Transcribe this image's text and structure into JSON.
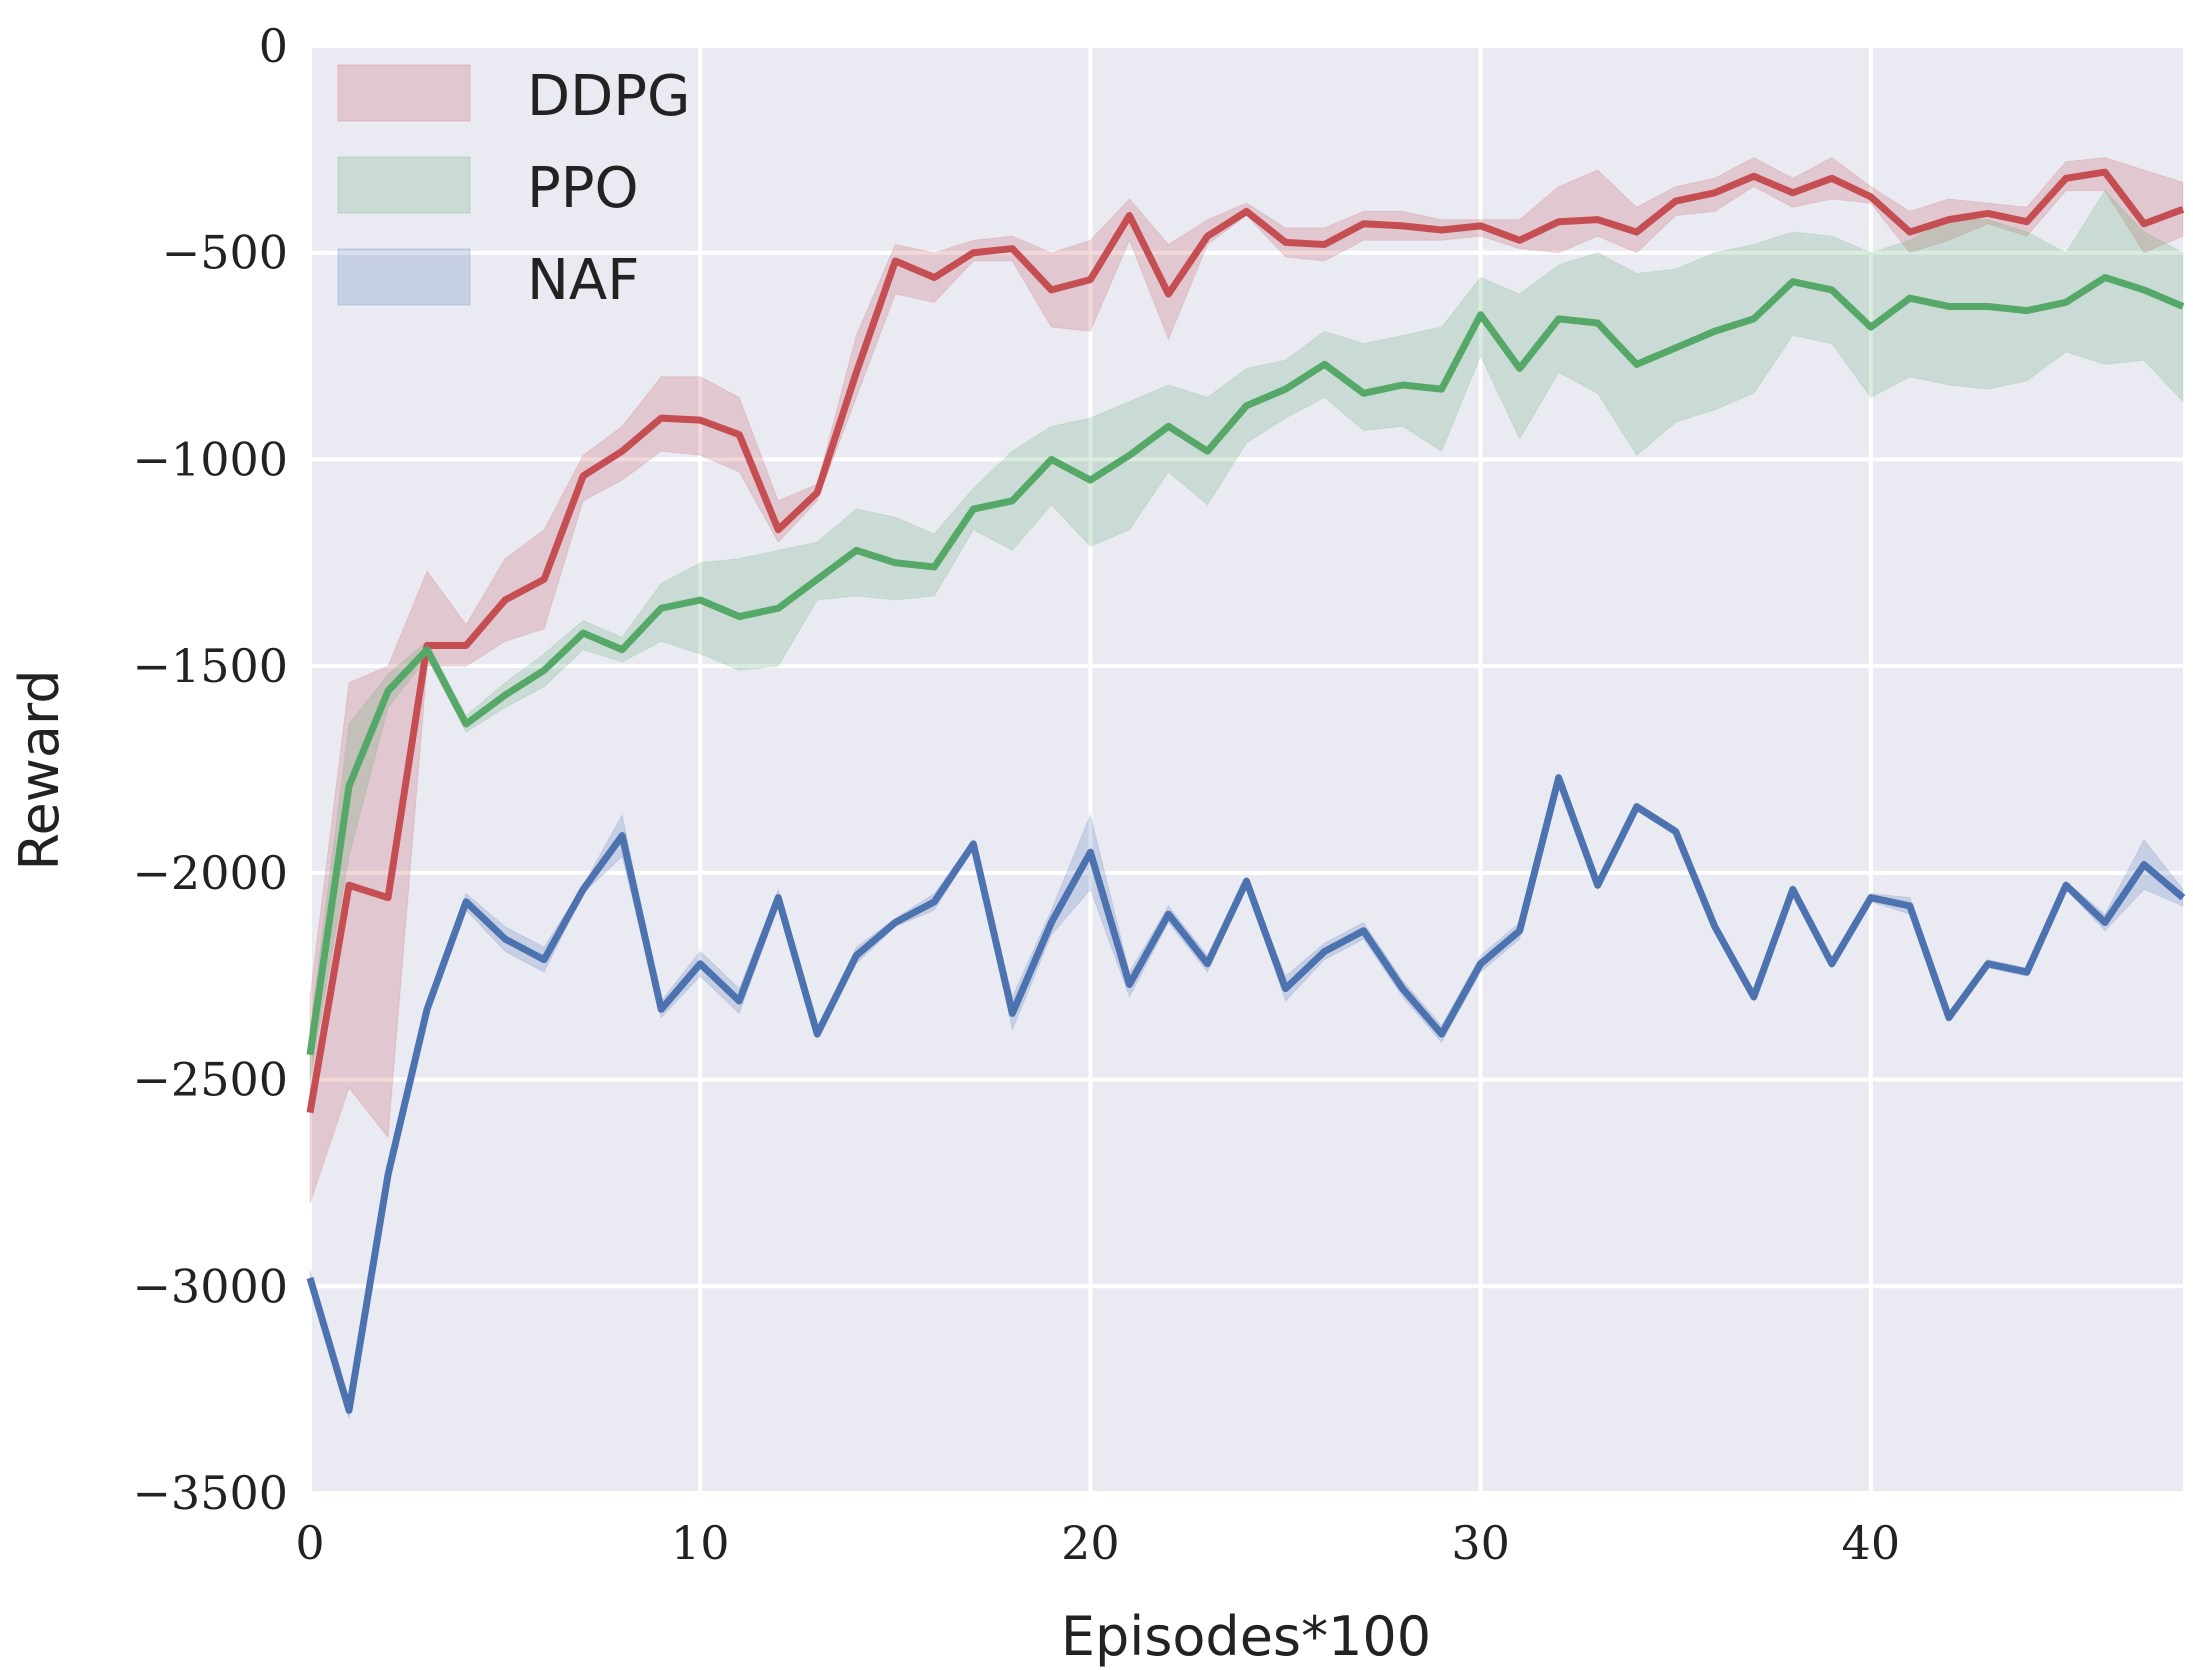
{
  "chart_data": {
    "type": "line",
    "title": "",
    "xlabel": "Episodes*100",
    "ylabel": "Reward",
    "xlim": [
      0,
      48
    ],
    "ylim": [
      -3500,
      0
    ],
    "xticks": [
      0,
      10,
      20,
      30,
      40
    ],
    "xtick_labels": [
      "0",
      "10",
      "20",
      "30",
      "40"
    ],
    "yticks": [
      0,
      -500,
      -1000,
      -1500,
      -2000,
      -2500,
      -3000,
      -3500
    ],
    "ytick_labels": [
      "0",
      "−500",
      "−1000",
      "−1500",
      "−2000",
      "−2500",
      "−3000",
      "−3500"
    ],
    "grid": true,
    "legend_position": "top-left",
    "x": [
      0,
      1,
      2,
      3,
      4,
      5,
      6,
      7,
      8,
      9,
      10,
      11,
      12,
      13,
      14,
      15,
      16,
      17,
      18,
      19,
      20,
      21,
      22,
      23,
      24,
      25,
      26,
      27,
      28,
      29,
      30,
      31,
      32,
      33,
      34,
      35,
      36,
      37,
      38,
      39,
      40,
      41,
      42,
      43,
      44,
      45,
      46,
      47,
      48
    ],
    "series": [
      {
        "name": "DDPG",
        "color": "#c44e52",
        "values": [
          -2580,
          -2030,
          -2060,
          -1450,
          -1450,
          -1340,
          -1290,
          -1040,
          -980,
          -900,
          -905,
          -940,
          -1170,
          -1080,
          -790,
          -520,
          -560,
          -500,
          -490,
          -590,
          -565,
          -410,
          -600,
          -460,
          -400,
          -475,
          -480,
          -430,
          -435,
          -445,
          -435,
          -470,
          -425,
          -420,
          -450,
          -375,
          -355,
          -315,
          -355,
          -320,
          -365,
          -450,
          -420,
          -405,
          -425,
          -320,
          -305,
          -430,
          -395
        ],
        "upper": [
          -2300,
          -1540,
          -1500,
          -1270,
          -1400,
          -1240,
          -1170,
          -990,
          -920,
          -800,
          -800,
          -850,
          -1100,
          -1060,
          -700,
          -480,
          -500,
          -470,
          -460,
          -500,
          -470,
          -370,
          -480,
          -420,
          -380,
          -440,
          -440,
          -400,
          -400,
          -420,
          -420,
          -420,
          -340,
          -300,
          -390,
          -340,
          -320,
          -270,
          -320,
          -270,
          -340,
          -400,
          -370,
          -380,
          -390,
          -280,
          -270,
          -300,
          -330
        ],
        "lower": [
          -2800,
          -2520,
          -2640,
          -1500,
          -1500,
          -1440,
          -1410,
          -1100,
          -1050,
          -980,
          -990,
          -1030,
          -1200,
          -1100,
          -850,
          -600,
          -620,
          -520,
          -520,
          -680,
          -690,
          -470,
          -710,
          -480,
          -410,
          -510,
          -520,
          -470,
          -470,
          -470,
          -460,
          -490,
          -500,
          -460,
          -500,
          -410,
          -400,
          -340,
          -390,
          -370,
          -380,
          -500,
          -470,
          -430,
          -460,
          -350,
          -350,
          -500,
          -460
        ]
      },
      {
        "name": "PPO",
        "color": "#55a868",
        "values": [
          -2440,
          -1790,
          -1560,
          -1460,
          -1640,
          -1570,
          -1510,
          -1420,
          -1460,
          -1360,
          -1340,
          -1380,
          -1360,
          -1290,
          -1220,
          -1250,
          -1260,
          -1120,
          -1100,
          -1000,
          -1050,
          -990,
          -920,
          -980,
          -870,
          -830,
          -770,
          -840,
          -820,
          -830,
          -650,
          -780,
          -660,
          -670,
          -770,
          -730,
          -690,
          -660,
          -570,
          -590,
          -680,
          -610,
          -630,
          -630,
          -640,
          -620,
          -560,
          -590,
          -630
        ],
        "upper": [
          -2380,
          -1640,
          -1520,
          -1440,
          -1620,
          -1540,
          -1470,
          -1390,
          -1430,
          -1300,
          -1250,
          -1240,
          -1220,
          -1200,
          -1120,
          -1140,
          -1180,
          -1070,
          -980,
          -920,
          -900,
          -860,
          -820,
          -850,
          -780,
          -760,
          -690,
          -720,
          -700,
          -680,
          -560,
          -600,
          -530,
          -500,
          -550,
          -540,
          -500,
          -480,
          -450,
          -460,
          -500,
          -470,
          -420,
          -420,
          -450,
          -500,
          -350,
          -450,
          -500
        ],
        "lower": [
          -2500,
          -1960,
          -1600,
          -1480,
          -1660,
          -1600,
          -1550,
          -1460,
          -1490,
          -1440,
          -1470,
          -1510,
          -1500,
          -1340,
          -1330,
          -1340,
          -1330,
          -1170,
          -1220,
          -1110,
          -1210,
          -1170,
          -1030,
          -1110,
          -960,
          -900,
          -850,
          -930,
          -920,
          -980,
          -750,
          -950,
          -790,
          -840,
          -990,
          -910,
          -880,
          -840,
          -700,
          -720,
          -850,
          -800,
          -820,
          -830,
          -810,
          -740,
          -770,
          -760,
          -860
        ]
      },
      {
        "name": "NAF",
        "color": "#4c72b0",
        "values": [
          -2980,
          -3300,
          -2730,
          -2330,
          -2070,
          -2160,
          -2210,
          -2040,
          -1910,
          -2330,
          -2220,
          -2310,
          -2060,
          -2390,
          -2200,
          -2120,
          -2070,
          -1930,
          -2340,
          -2120,
          -1950,
          -2270,
          -2100,
          -2220,
          -2020,
          -2280,
          -2190,
          -2140,
          -2280,
          -2390,
          -2220,
          -2140,
          -1770,
          -2030,
          -1840,
          -1900,
          -2130,
          -2300,
          -2040,
          -2220,
          -2060,
          -2080,
          -2350,
          -2220,
          -2240,
          -2030,
          -2120,
          -1980,
          -2060
        ],
        "upper": [
          -2960,
          -3280,
          -2710,
          -2310,
          -2050,
          -2130,
          -2180,
          -2030,
          -1860,
          -2310,
          -2190,
          -2280,
          -2040,
          -2380,
          -2180,
          -2110,
          -2050,
          -1920,
          -2300,
          -2090,
          -1860,
          -2240,
          -2080,
          -2200,
          -2010,
          -2250,
          -2170,
          -2120,
          -2260,
          -2370,
          -2200,
          -2120,
          -1760,
          -2020,
          -1830,
          -1890,
          -2120,
          -2290,
          -2030,
          -2210,
          -2050,
          -2060,
          -2340,
          -2210,
          -2230,
          -2020,
          -2100,
          -1920,
          -2040
        ],
        "lower": [
          -3000,
          -3320,
          -2750,
          -2350,
          -2090,
          -2190,
          -2240,
          -2050,
          -1960,
          -2350,
          -2250,
          -2340,
          -2080,
          -2400,
          -2220,
          -2130,
          -2090,
          -1940,
          -2380,
          -2150,
          -2040,
          -2300,
          -2120,
          -2240,
          -2030,
          -2310,
          -2210,
          -2160,
          -2300,
          -2410,
          -2240,
          -2160,
          -1780,
          -2040,
          -1850,
          -1910,
          -2140,
          -2310,
          -2050,
          -2230,
          -2070,
          -2100,
          -2360,
          -2230,
          -2250,
          -2040,
          -2140,
          -2040,
          -2080
        ]
      }
    ]
  }
}
